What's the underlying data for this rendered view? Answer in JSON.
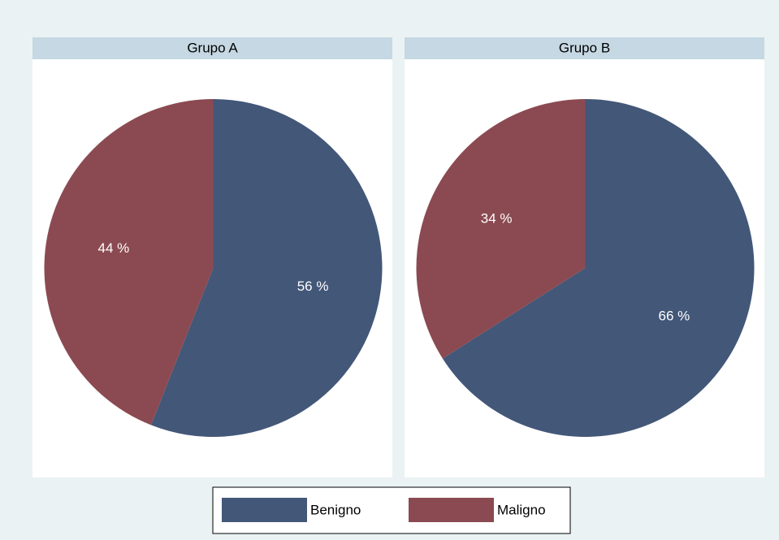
{
  "chart_data": [
    {
      "type": "pie",
      "title": "Grupo A",
      "categories": [
        "Benigno",
        "Maligno"
      ],
      "values": [
        56,
        44
      ],
      "value_labels": [
        "56 %",
        "44 %"
      ],
      "colors": [
        "#435778",
        "#8b4a51"
      ]
    },
    {
      "type": "pie",
      "title": "Grupo B",
      "categories": [
        "Benigno",
        "Maligno"
      ],
      "values": [
        66,
        34
      ],
      "value_labels": [
        "66 %",
        "34 %"
      ],
      "colors": [
        "#435778",
        "#8b4a51"
      ]
    }
  ]
}
